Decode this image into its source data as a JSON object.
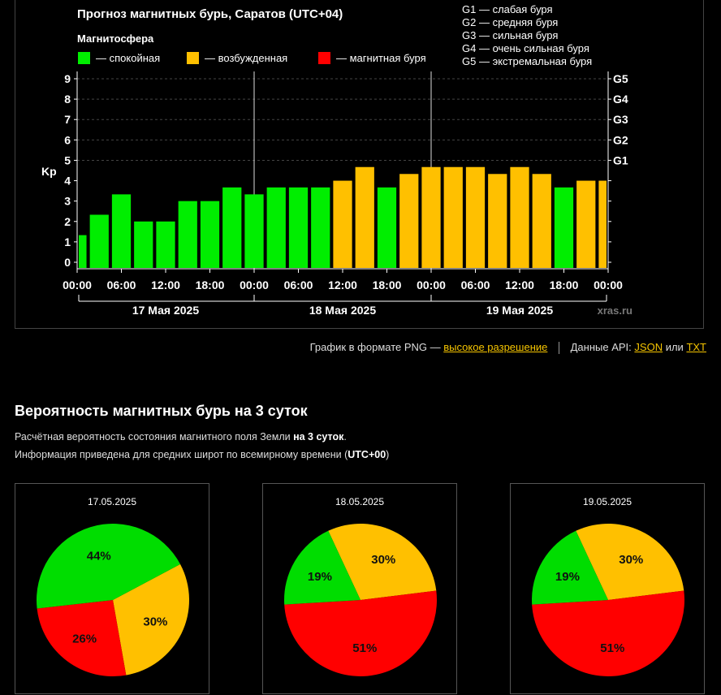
{
  "forecast": {
    "title": "Прогноз магнитных бурь, Саратов (UTC+04)",
    "legend_title": "Магнитосфера",
    "legend": [
      {
        "label": "— спокойная",
        "color": "#00ee00"
      },
      {
        "label": "— возбужденная",
        "color": "#ffc000"
      },
      {
        "label": "— магнитная буря",
        "color": "#ff0000"
      }
    ],
    "g_scale": [
      "G1 — слабая буря",
      "G2 — средняя буря",
      "G3 — сильная буря",
      "G4 — очень сильная буря",
      "G5 — экстремальная буря"
    ],
    "watermark": "xras.ru"
  },
  "chart_data": {
    "type": "bar",
    "ylabel": "Kp",
    "ylim": [
      0,
      9
    ],
    "yticks": [
      0,
      1,
      2,
      3,
      4,
      5,
      6,
      7,
      8,
      9
    ],
    "right_ticks": [
      {
        "value": 5,
        "label": "G1"
      },
      {
        "value": 6,
        "label": "G2"
      },
      {
        "value": 7,
        "label": "G3"
      },
      {
        "value": 8,
        "label": "G4"
      },
      {
        "value": 9,
        "label": "G5"
      }
    ],
    "x_tick_labels": [
      "00:00",
      "06:00",
      "12:00",
      "18:00",
      "00:00",
      "06:00",
      "12:00",
      "18:00",
      "00:00",
      "06:00",
      "12:00",
      "18:00",
      "00:00"
    ],
    "day_labels": [
      "17 Мая 2025",
      "18 Мая 2025",
      "19 Мая 2025"
    ],
    "values": [
      1.33,
      2.33,
      3.33,
      2.0,
      2.0,
      3.0,
      3.0,
      3.67,
      3.33,
      3.67,
      3.67,
      3.67,
      4.0,
      4.67,
      3.67,
      4.33,
      4.67,
      4.67,
      4.67,
      4.33,
      4.67,
      4.33,
      3.67,
      4.0,
      4.0
    ],
    "levels": [
      "calm",
      "calm",
      "calm",
      "calm",
      "calm",
      "calm",
      "calm",
      "calm",
      "calm",
      "calm",
      "calm",
      "calm",
      "excited",
      "excited",
      "calm",
      "excited",
      "excited",
      "excited",
      "excited",
      "excited",
      "excited",
      "excited",
      "calm",
      "excited",
      "excited"
    ],
    "colors": {
      "calm": "#00ee00",
      "excited": "#ffc000",
      "storm": "#ff0000"
    }
  },
  "links": {
    "png_text": "График в формате PNG —",
    "png_link": "высокое разрешение",
    "api_text": "Данные API:",
    "json": "JSON",
    "or": "или",
    "txt": "TXT"
  },
  "probability": {
    "title": "Вероятность магнитных бурь на 3 суток",
    "desc1_pre": "Расчётная вероятность состояния магнитного поля Земли",
    "desc1_bold": "на 3 суток",
    "desc1_post": ".",
    "desc2_pre": "Информация приведена для средних широт по всемирному времени (",
    "desc2_bold": "UTC+00",
    "desc2_post": ")",
    "days": [
      {
        "date": "17.05.2025",
        "green": 44,
        "yellow": 30,
        "red": 26
      },
      {
        "date": "18.05.2025",
        "green": 19,
        "yellow": 30,
        "red": 51
      },
      {
        "date": "19.05.2025",
        "green": 19,
        "yellow": 30,
        "red": 51
      }
    ],
    "colors": {
      "green": "#00dd00",
      "yellow": "#ffc000",
      "red": "#ff0000"
    }
  }
}
